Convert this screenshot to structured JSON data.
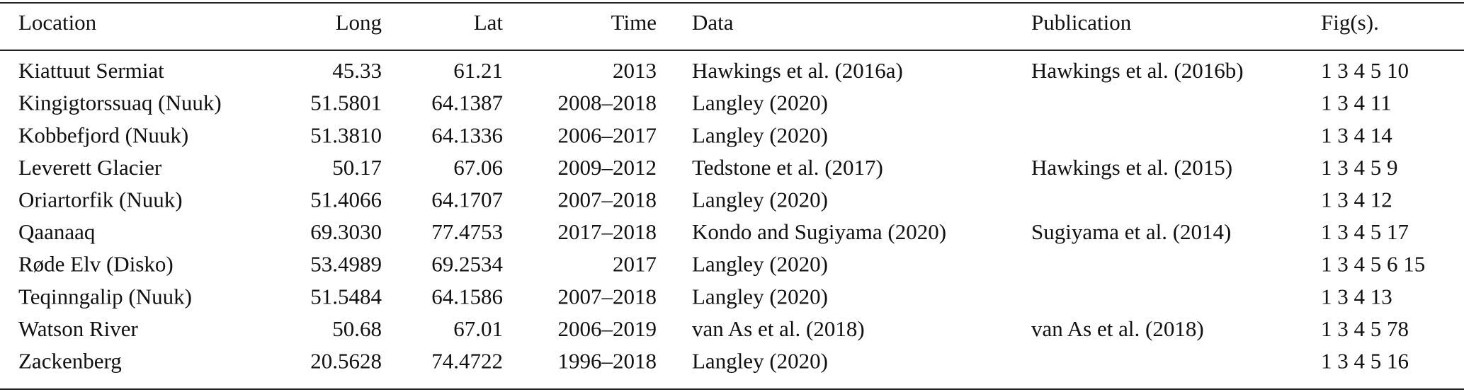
{
  "table": {
    "header": [
      "Location",
      "Long",
      "Lat",
      "Time",
      "Data",
      "Publication",
      "Fig(s)."
    ],
    "rows": [
      {
        "location": "Kiattuut Sermiat",
        "long": "45.33",
        "lat": "61.21",
        "time": "2013",
        "data": "Hawkings et al. (2016a)",
        "publication": "Hawkings et al. (2016b)",
        "figs": "1 3 4 5 10"
      },
      {
        "location": "Kingigtorssuaq (Nuuk)",
        "long": "51.5801",
        "lat": "64.1387",
        "time": "2008–2018",
        "data": "Langley (2020)",
        "figs": "1 3 4 11"
      },
      {
        "location": "Kobbefjord (Nuuk)",
        "long": "51.3810",
        "lat": "64.1336",
        "time": "2006–2017",
        "data": "Langley (2020)",
        "figs": "1 3 4 14"
      },
      {
        "location": "Leverett Glacier",
        "long": "50.17",
        "lat": "67.06",
        "time": "2009–2012",
        "data": "Tedstone et al. (2017)",
        "publication": "Hawkings et al. (2015)",
        "figs": "1 3 4 5 9"
      },
      {
        "location": "Oriartorfik (Nuuk)",
        "long": "51.4066",
        "lat": "64.1707",
        "time": "2007–2018",
        "data": "Langley (2020)",
        "figs": "1 3 4 12"
      },
      {
        "location": "Qaanaaq",
        "long": "69.3030",
        "lat": "77.4753",
        "time": "2017–2018",
        "data": "Kondo and Sugiyama (2020)",
        "publication": "Sugiyama et al. (2014)",
        "figs": "1 3 4 5 17"
      },
      {
        "location": "Røde Elv (Disko)",
        "long": "53.4989",
        "lat": "69.2534",
        "time": "2017",
        "data": "Langley (2020)",
        "figs": "1 3 4 5 6 15"
      },
      {
        "location": "Teqinngalip (Nuuk)",
        "long": "51.5484",
        "lat": "64.1586",
        "time": "2007–2018",
        "data": "Langley (2020)",
        "figs": "1 3 4 13"
      },
      {
        "location": "Watson River",
        "long": "50.68",
        "lat": "67.01",
        "time": "2006–2019",
        "data": "van As et al. (2018)",
        "publication": "van As et al. (2018)",
        "figs": "1 3 4 5 78"
      },
      {
        "location": "Zackenberg",
        "long": "20.5628",
        "lat": "74.4722",
        "time": "1996–2018",
        "data": "Langley (2020)",
        "figs": "1 3 4 5 16"
      }
    ]
  }
}
